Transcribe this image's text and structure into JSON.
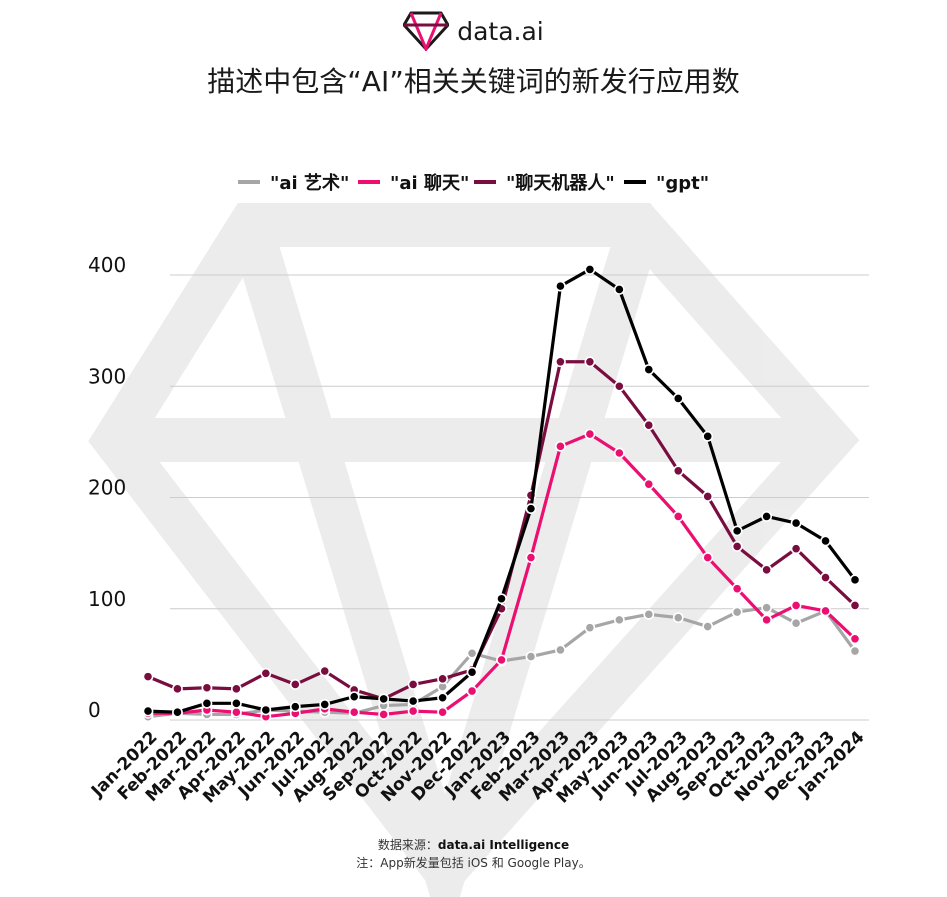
{
  "brand": {
    "name": "data.ai"
  },
  "chart_data": {
    "type": "line",
    "title": "描述中包含“AI”相关关键词的新发行应用数",
    "xlabel": "",
    "ylabel": "",
    "ylim": [
      0,
      400
    ],
    "yticks": [
      0,
      100,
      200,
      300,
      400
    ],
    "grid": true,
    "legend_position": "top-center",
    "categories": [
      "Jan-2022",
      "Feb-2022",
      "Mar-2022",
      "Apr-2022",
      "May-2022",
      "Jun-2022",
      "Jul-2022",
      "Aug-2022",
      "Sep-2022",
      "Oct-2022",
      "Nov-2022",
      "Dec-2022",
      "Jan-2023",
      "Feb-2023",
      "Mar-2023",
      "Apr-2023",
      "May-2023",
      "Jun-2023",
      "Jul-2023",
      "Aug-2023",
      "Sep-2023",
      "Oct-2023",
      "Nov-2023",
      "Dec-2023",
      "Jan-2024"
    ],
    "series": [
      {
        "name": "\"ai 艺术\"",
        "color": "#a6a6a6",
        "values": [
          3,
          6,
          5,
          5,
          9,
          8,
          7,
          6,
          13,
          14,
          30,
          60,
          53,
          57,
          63,
          83,
          90,
          95,
          92,
          84,
          97,
          101,
          87,
          98,
          62
        ]
      },
      {
        "name": "\"ai 聊天\"",
        "color": "#ec0f72",
        "values": [
          6,
          6,
          9,
          7,
          3,
          6,
          10,
          7,
          5,
          8,
          7,
          26,
          54,
          146,
          246,
          257,
          240,
          212,
          183,
          146,
          118,
          90,
          103,
          98,
          73
        ]
      },
      {
        "name": "\"聊天机器人\"",
        "color": "#7a0d40",
        "values": [
          39,
          28,
          29,
          28,
          42,
          32,
          44,
          27,
          19,
          32,
          37,
          45,
          100,
          202,
          322,
          322,
          300,
          265,
          224,
          201,
          156,
          135,
          154,
          128,
          103
        ]
      },
      {
        "name": "\"gpt\"",
        "color": "#000000",
        "values": [
          8,
          7,
          15,
          15,
          9,
          12,
          14,
          21,
          19,
          17,
          20,
          43,
          109,
          190,
          390,
          405,
          387,
          315,
          289,
          255,
          170,
          183,
          177,
          161,
          126
        ]
      }
    ]
  },
  "footer": {
    "source_prefix": "数据来源：",
    "source_name": "data.ai Intelligence",
    "note": "注：App新发量包括 iOS 和 Google Play。"
  }
}
